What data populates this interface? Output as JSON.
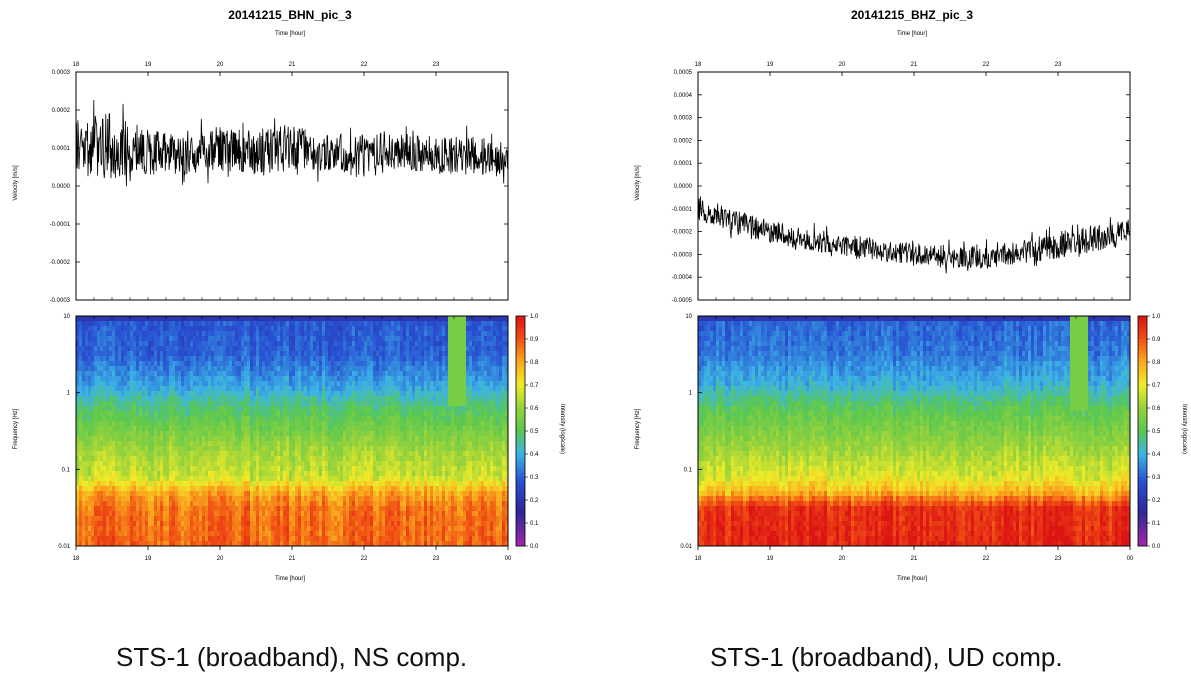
{
  "chart_data": [
    {
      "type": "line",
      "title": "20141215_BHN_pic_3",
      "xlabel_top": "Time [hour]",
      "xlabel": "Time [hour]",
      "ylabel": "Velocity [m/s]",
      "top_ticks": [
        "18",
        "19",
        "20",
        "21",
        "22",
        "23"
      ],
      "x_ticks": [
        "18",
        "19",
        "20",
        "21",
        "22",
        "23",
        "00"
      ],
      "xlim": [
        18,
        24
      ],
      "ylim": [
        -0.0003,
        0.0003
      ],
      "y_ticks": [
        "0.0003",
        "0.0002",
        "0.0001",
        "0.0000",
        "-0.0001",
        "-0.0002",
        "-0.0003"
      ],
      "y_tick_values": [
        0.0003,
        0.0002,
        0.0001,
        0.0,
        -0.0001,
        -0.0002,
        -0.0003
      ],
      "trace": {
        "x": [
          18,
          18.5,
          19,
          19.5,
          20,
          20.5,
          21,
          21.5,
          22,
          22.5,
          23,
          23.5,
          24
        ],
        "center": [
          0.0001,
          0.00011,
          9e-05,
          8e-05,
          0.0001,
          9e-05,
          0.0001,
          9e-05,
          8e-05,
          9e-05,
          8e-05,
          8e-05,
          7e-05
        ],
        "amplitude": [
          8e-05,
          9e-05,
          6e-05,
          5e-05,
          6e-05,
          6e-05,
          6e-05,
          5e-05,
          6e-05,
          5e-05,
          5e-05,
          5e-05,
          5e-05
        ]
      },
      "spectrogram": {
        "type": "heatmap",
        "ylabel": "Frequency [Hz]",
        "yscale": "log",
        "ylim": [
          0.01,
          10
        ],
        "y_ticks": [
          "10",
          "1",
          "0.1",
          "0.01"
        ],
        "y_tick_values": [
          10,
          1,
          0.1,
          0.01
        ],
        "colorbar_label": "Intensity (logscale)",
        "colorbar_ticks": [
          "1.0",
          "0.9",
          "0.8",
          "0.7",
          "0.6",
          "0.5",
          "0.4",
          "0.3",
          "0.2",
          "0.1",
          "0.0"
        ],
        "colorbar_range": [
          0.0,
          1.0
        ],
        "profile": {
          "log_freq": [
            1.0,
            0.5,
            0.1,
            -0.2,
            -0.5,
            -0.8,
            -1.1,
            -1.3,
            -1.5,
            -2.0
          ],
          "intensity": [
            0.28,
            0.3,
            0.38,
            0.48,
            0.55,
            0.62,
            0.66,
            0.8,
            0.86,
            0.88
          ]
        },
        "event": {
          "time": 23.3,
          "freq_range": [
            0.7,
            10
          ],
          "intensity": 0.55
        }
      }
    },
    {
      "type": "line",
      "title": "20141215_BHZ_pic_3",
      "xlabel_top": "Time [hour]",
      "xlabel": "Time [hour]",
      "ylabel": "Velocity [m/s]",
      "top_ticks": [
        "18",
        "19",
        "20",
        "21",
        "22",
        "23"
      ],
      "x_ticks": [
        "18",
        "19",
        "20",
        "21",
        "22",
        "23",
        "00"
      ],
      "xlim": [
        18,
        24
      ],
      "ylim": [
        -0.0005,
        0.0005
      ],
      "y_ticks": [
        "0.0005",
        "0.0004",
        "0.0003",
        "0.0002",
        "0.0001",
        "0.0000",
        "-0.0001",
        "-0.0002",
        "-0.0003",
        "-0.0004",
        "-0.0005"
      ],
      "y_tick_values": [
        0.0005,
        0.0004,
        0.0003,
        0.0002,
        0.0001,
        0.0,
        -0.0001,
        -0.0002,
        -0.0003,
        -0.0004,
        -0.0005
      ],
      "trace": {
        "x": [
          18,
          18.5,
          19,
          19.5,
          20,
          20.5,
          21,
          21.5,
          22,
          22.5,
          23,
          23.5,
          24
        ],
        "center": [
          -0.0001,
          -0.00016,
          -0.0002,
          -0.00023,
          -0.00026,
          -0.00028,
          -0.0003,
          -0.00031,
          -0.00031,
          -0.00029,
          -0.00026,
          -0.00023,
          -0.0002
        ],
        "amplitude": [
          6e-05,
          6e-05,
          5e-05,
          5e-05,
          5e-05,
          5e-05,
          5e-05,
          5e-05,
          5e-05,
          5e-05,
          6e-05,
          6e-05,
          5e-05
        ]
      },
      "spectrogram": {
        "type": "heatmap",
        "ylabel": "Frequency [Hz]",
        "yscale": "log",
        "ylim": [
          0.01,
          10
        ],
        "y_ticks": [
          "10",
          "1",
          "0.1",
          "0.01"
        ],
        "y_tick_values": [
          10,
          1,
          0.1,
          0.01
        ],
        "colorbar_label": "Intensity (logscale)",
        "colorbar_ticks": [
          "1.0",
          "0.9",
          "0.8",
          "0.7",
          "0.6",
          "0.5",
          "0.4",
          "0.3",
          "0.2",
          "0.1",
          "0.0"
        ],
        "colorbar_range": [
          0.0,
          1.0
        ],
        "profile": {
          "log_freq": [
            1.0,
            0.5,
            0.1,
            -0.2,
            -0.5,
            -0.8,
            -1.1,
            -1.3,
            -1.5,
            -2.0
          ],
          "intensity": [
            0.3,
            0.33,
            0.4,
            0.5,
            0.56,
            0.62,
            0.68,
            0.78,
            0.95,
            0.97
          ]
        },
        "event": {
          "time": 23.3,
          "freq_range": [
            0.6,
            10
          ],
          "intensity": 0.55
        }
      }
    }
  ],
  "captions": {
    "left": "STS-1 (broadband), NS comp.",
    "right": "STS-1 (broadband), UD comp."
  }
}
